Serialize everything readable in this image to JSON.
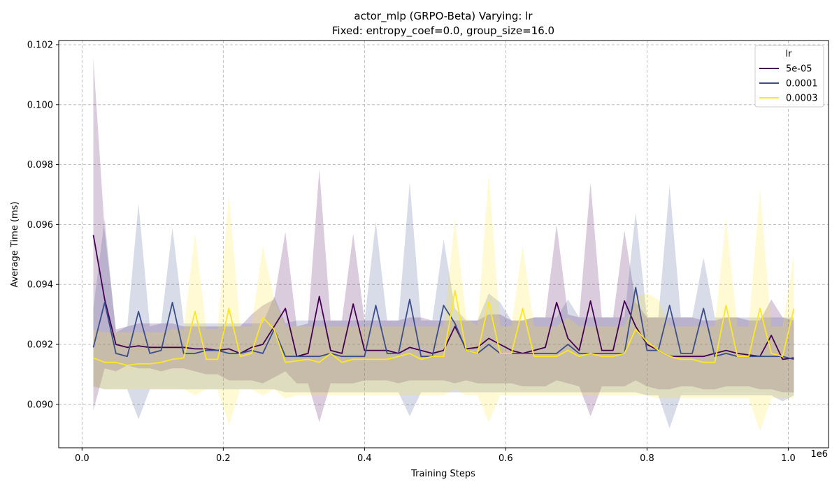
{
  "chart_data": {
    "type": "line",
    "title": "actor_mlp (GRPO-Beta) Varying: lr",
    "subtitle": "Fixed: entropy_coef=0.0, group_size=16.0",
    "xlabel": "Training Steps",
    "ylabel": "Average Time (ms)",
    "x_offset_label": "1e6",
    "xlim": [
      -0.033,
      1.057
    ],
    "ylim": [
      0.08855,
      0.10214
    ],
    "xticks": [
      0.0,
      0.2,
      0.4,
      0.6,
      0.8,
      1.0
    ],
    "xtick_labels": [
      "0.0",
      "0.2",
      "0.4",
      "0.6",
      "0.8",
      "1.0"
    ],
    "yticks": [
      0.09,
      0.092,
      0.094,
      0.096,
      0.098,
      0.1,
      0.102
    ],
    "ytick_labels": [
      "0.090",
      "0.092",
      "0.094",
      "0.096",
      "0.098",
      "0.100",
      "0.102"
    ],
    "grid": true,
    "legend": {
      "title": "lr",
      "position": "top-right"
    },
    "x": [
      0.016,
      0.032,
      0.048,
      0.064,
      0.08,
      0.096,
      0.112,
      0.128,
      0.144,
      0.16,
      0.176,
      0.192,
      0.208,
      0.224,
      0.24,
      0.256,
      0.272,
      0.288,
      0.304,
      0.32,
      0.336,
      0.352,
      0.368,
      0.384,
      0.4,
      0.416,
      0.432,
      0.448,
      0.464,
      0.48,
      0.496,
      0.512,
      0.528,
      0.544,
      0.56,
      0.576,
      0.592,
      0.608,
      0.624,
      0.64,
      0.656,
      0.672,
      0.688,
      0.704,
      0.72,
      0.736,
      0.752,
      0.768,
      0.784,
      0.8,
      0.816,
      0.832,
      0.848,
      0.864,
      0.88,
      0.896,
      0.912,
      0.928,
      0.944,
      0.96,
      0.976,
      0.992,
      1.008
    ],
    "series": [
      {
        "name": "5e-05",
        "color": "#440154",
        "values": [
          0.09565,
          0.0935,
          0.092,
          0.0919,
          0.09195,
          0.0919,
          0.0919,
          0.0919,
          0.0919,
          0.09185,
          0.09185,
          0.0918,
          0.09185,
          0.0917,
          0.0919,
          0.092,
          0.0926,
          0.0932,
          0.0916,
          0.0917,
          0.0936,
          0.0918,
          0.0917,
          0.09335,
          0.0918,
          0.0918,
          0.0918,
          0.0917,
          0.0919,
          0.0918,
          0.0917,
          0.0918,
          0.0926,
          0.09185,
          0.0919,
          0.0922,
          0.092,
          0.0918,
          0.0917,
          0.0918,
          0.0919,
          0.0934,
          0.0922,
          0.0918,
          0.09345,
          0.0918,
          0.0918,
          0.09345,
          0.0926,
          0.092,
          0.0918,
          0.0916,
          0.0916,
          0.0916,
          0.0916,
          0.0917,
          0.0918,
          0.0917,
          0.09165,
          0.0916,
          0.0923,
          0.0915,
          0.09155
        ],
        "lower": [
          0.0898,
          0.0912,
          0.0911,
          0.0913,
          0.0912,
          0.0912,
          0.0911,
          0.0912,
          0.0912,
          0.0911,
          0.091,
          0.091,
          0.0908,
          0.0908,
          0.0908,
          0.0907,
          0.0909,
          0.0911,
          0.0907,
          0.0907,
          0.0894,
          0.0907,
          0.0907,
          0.0907,
          0.0908,
          0.0908,
          0.0908,
          0.0907,
          0.0908,
          0.0908,
          0.0908,
          0.0908,
          0.0907,
          0.0908,
          0.0907,
          0.0907,
          0.0907,
          0.0907,
          0.0906,
          0.0906,
          0.0906,
          0.0908,
          0.0907,
          0.0906,
          0.0896,
          0.0906,
          0.0906,
          0.0906,
          0.0908,
          0.0906,
          0.0905,
          0.0905,
          0.0906,
          0.0906,
          0.0905,
          0.0905,
          0.0906,
          0.0906,
          0.0906,
          0.0905,
          0.0905,
          0.0904,
          0.0904
        ],
        "upper": [
          0.10155,
          0.0958,
          0.0925,
          0.0926,
          0.0927,
          0.0927,
          0.0927,
          0.0927,
          0.0926,
          0.0926,
          0.0926,
          0.0926,
          0.0926,
          0.0926,
          0.093,
          0.0933,
          0.0935,
          0.09575,
          0.0926,
          0.0927,
          0.09785,
          0.0928,
          0.0928,
          0.0957,
          0.0928,
          0.0928,
          0.0928,
          0.0928,
          0.0929,
          0.0929,
          0.0928,
          0.0928,
          0.0928,
          0.0928,
          0.0928,
          0.093,
          0.093,
          0.0928,
          0.0928,
          0.0929,
          0.0929,
          0.096,
          0.093,
          0.0929,
          0.0974,
          0.0929,
          0.0929,
          0.0958,
          0.0934,
          0.0929,
          0.0929,
          0.0929,
          0.0929,
          0.0929,
          0.0928,
          0.0928,
          0.0929,
          0.0929,
          0.0928,
          0.0928,
          0.0935,
          0.0929,
          0.0928
        ]
      },
      {
        "name": "0.0001",
        "color": "#3b4d8a",
        "values": [
          0.0919,
          0.0934,
          0.0917,
          0.0916,
          0.0931,
          0.0917,
          0.0918,
          0.0934,
          0.0917,
          0.0917,
          0.0918,
          0.0918,
          0.0917,
          0.0917,
          0.0918,
          0.0917,
          0.0925,
          0.0916,
          0.0916,
          0.0916,
          0.0916,
          0.0917,
          0.0916,
          0.0916,
          0.0916,
          0.0933,
          0.0917,
          0.0917,
          0.0935,
          0.0916,
          0.0916,
          0.0933,
          0.0927,
          0.0918,
          0.0917,
          0.092,
          0.0917,
          0.0917,
          0.0917,
          0.0917,
          0.0917,
          0.0917,
          0.092,
          0.0917,
          0.0917,
          0.0917,
          0.0917,
          0.0917,
          0.0939,
          0.0918,
          0.0918,
          0.0933,
          0.0917,
          0.0917,
          0.0932,
          0.0916,
          0.0917,
          0.0916,
          0.0916,
          0.0916,
          0.0916,
          0.0916,
          0.0915
        ],
        "lower": [
          0.0906,
          0.0905,
          0.0905,
          0.0905,
          0.0895,
          0.0905,
          0.0905,
          0.0905,
          0.0905,
          0.0905,
          0.0905,
          0.0905,
          0.0905,
          0.0905,
          0.0905,
          0.0905,
          0.0905,
          0.0904,
          0.0904,
          0.0904,
          0.0904,
          0.0904,
          0.0904,
          0.0904,
          0.0904,
          0.0904,
          0.0904,
          0.0904,
          0.0896,
          0.0904,
          0.0904,
          0.0904,
          0.0904,
          0.0904,
          0.0904,
          0.0904,
          0.0904,
          0.0904,
          0.0904,
          0.0904,
          0.0904,
          0.0904,
          0.0904,
          0.0904,
          0.0904,
          0.0904,
          0.0904,
          0.0904,
          0.0904,
          0.0903,
          0.0903,
          0.0892,
          0.0903,
          0.0903,
          0.0903,
          0.0903,
          0.0903,
          0.0903,
          0.0903,
          0.0903,
          0.0903,
          0.0901,
          0.0903
        ],
        "upper": [
          0.0932,
          0.0962,
          0.0924,
          0.0926,
          0.0967,
          0.0926,
          0.0927,
          0.0959,
          0.0927,
          0.0927,
          0.0927,
          0.0927,
          0.0927,
          0.0927,
          0.0927,
          0.0927,
          0.0936,
          0.0927,
          0.0928,
          0.0928,
          0.0928,
          0.0928,
          0.0928,
          0.0928,
          0.0928,
          0.0961,
          0.0928,
          0.0928,
          0.0974,
          0.0928,
          0.0928,
          0.0955,
          0.0932,
          0.0928,
          0.0928,
          0.0937,
          0.0934,
          0.0928,
          0.0928,
          0.0929,
          0.0929,
          0.0929,
          0.0935,
          0.0929,
          0.0929,
          0.0929,
          0.0929,
          0.0929,
          0.0964,
          0.0929,
          0.0929,
          0.0973,
          0.0929,
          0.0929,
          0.0949,
          0.0929,
          0.0929,
          0.0929,
          0.0929,
          0.0929,
          0.0929,
          0.0929,
          0.0929
        ]
      },
      {
        "name": "0.0003",
        "color": "#fde725",
        "values": [
          0.09155,
          0.0914,
          0.0914,
          0.0913,
          0.09135,
          0.09135,
          0.0914,
          0.0915,
          0.09155,
          0.0931,
          0.0915,
          0.0915,
          0.0932,
          0.0916,
          0.0917,
          0.0929,
          0.0925,
          0.0914,
          0.09145,
          0.0915,
          0.0914,
          0.0917,
          0.0914,
          0.0915,
          0.0915,
          0.0915,
          0.0915,
          0.0916,
          0.0917,
          0.0915,
          0.0916,
          0.0916,
          0.0938,
          0.0918,
          0.0917,
          0.0934,
          0.0917,
          0.0917,
          0.0932,
          0.0916,
          0.0916,
          0.0916,
          0.0918,
          0.0916,
          0.0917,
          0.0916,
          0.0916,
          0.0917,
          0.0925,
          0.0921,
          0.0918,
          0.0916,
          0.0915,
          0.0915,
          0.0914,
          0.0914,
          0.0933,
          0.0916,
          0.0916,
          0.0932,
          0.0917,
          0.0916,
          0.0932
        ],
        "lower": [
          0.0906,
          0.0905,
          0.0905,
          0.0905,
          0.0905,
          0.0905,
          0.0905,
          0.0905,
          0.0905,
          0.0903,
          0.0905,
          0.0905,
          0.0893,
          0.0905,
          0.0905,
          0.0903,
          0.0905,
          0.0902,
          0.0903,
          0.0903,
          0.0903,
          0.0903,
          0.0903,
          0.0903,
          0.0903,
          0.0903,
          0.0903,
          0.0903,
          0.0903,
          0.0903,
          0.0903,
          0.0903,
          0.0905,
          0.0903,
          0.0903,
          0.0894,
          0.0903,
          0.0903,
          0.0903,
          0.0903,
          0.0903,
          0.0903,
          0.0903,
          0.0903,
          0.0903,
          0.0903,
          0.0903,
          0.0903,
          0.0903,
          0.0903,
          0.0902,
          0.0902,
          0.0902,
          0.0902,
          0.0902,
          0.0902,
          0.0902,
          0.0902,
          0.0902,
          0.0891,
          0.0902,
          0.0902,
          0.0902
        ],
        "upper": [
          0.0925,
          0.0924,
          0.0924,
          0.0924,
          0.0924,
          0.0924,
          0.0924,
          0.0925,
          0.0925,
          0.0957,
          0.0925,
          0.0925,
          0.097,
          0.0926,
          0.0926,
          0.0953,
          0.0935,
          0.0926,
          0.0926,
          0.0926,
          0.0926,
          0.0926,
          0.0926,
          0.0926,
          0.0926,
          0.0926,
          0.0926,
          0.0926,
          0.0926,
          0.0926,
          0.0926,
          0.0926,
          0.0962,
          0.0929,
          0.0926,
          0.0977,
          0.0926,
          0.0926,
          0.0953,
          0.0926,
          0.0926,
          0.0926,
          0.0929,
          0.0926,
          0.0926,
          0.0926,
          0.0926,
          0.0926,
          0.0936,
          0.0937,
          0.0935,
          0.0926,
          0.0926,
          0.0926,
          0.0926,
          0.0926,
          0.0962,
          0.0926,
          0.0926,
          0.0972,
          0.0926,
          0.0926,
          0.095
        ]
      }
    ]
  }
}
